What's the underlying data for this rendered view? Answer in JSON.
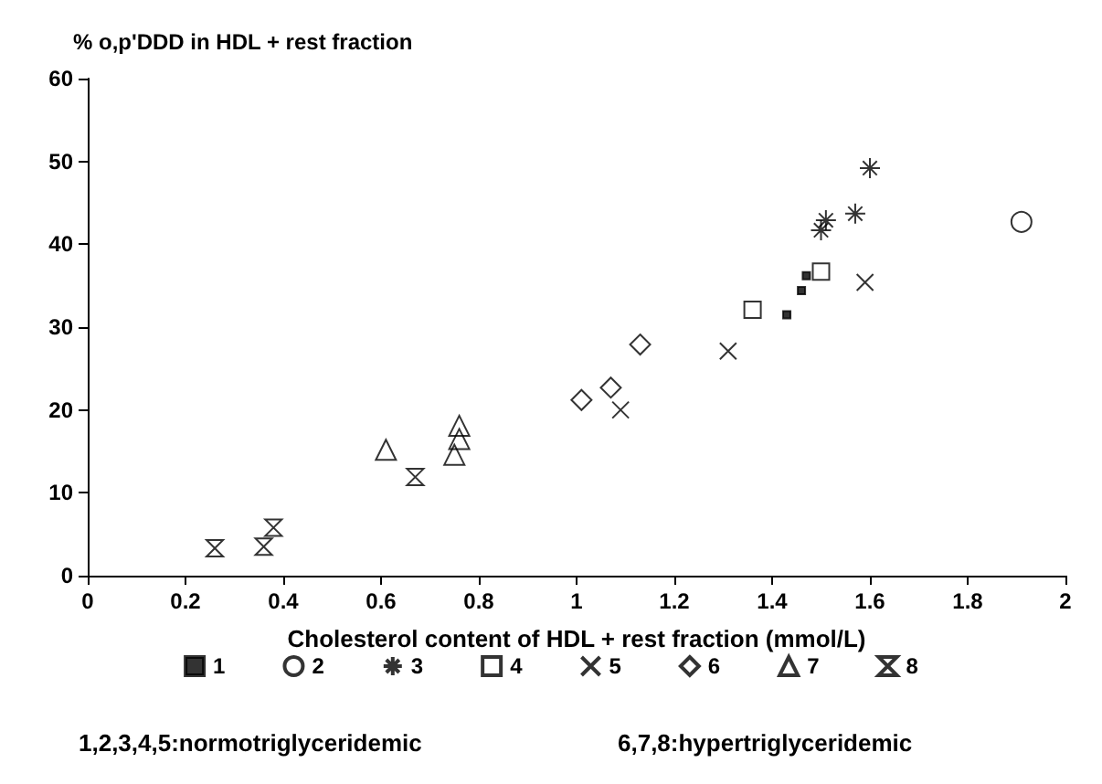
{
  "chart_data": {
    "type": "scatter",
    "ylabel": "% o,p'DDD in HDL + rest fraction",
    "xlabel": "Cholesterol content of HDL + rest fraction (mmol/L)",
    "xlim": [
      0,
      2
    ],
    "xticks": [
      0,
      0.2,
      0.4,
      0.6,
      0.8,
      1,
      1.2,
      1.4,
      1.6,
      1.8,
      2
    ],
    "ylim": [
      0,
      60
    ],
    "yticks": [
      0,
      10,
      20,
      30,
      40,
      50,
      60
    ],
    "grid": false,
    "legend": "bottom",
    "series": [
      {
        "name": "1",
        "color": "#000000",
        "x": [
          1.43,
          1.46,
          1.47
        ],
        "values": [
          31.5,
          34.4,
          36.2
        ]
      },
      {
        "name": "2",
        "color": "#000000",
        "marker": "circle",
        "x": [
          1.91
        ],
        "values": [
          42.7
        ]
      },
      {
        "name": "3",
        "color": "#000000",
        "x": [
          1.6,
          1.57,
          1.51,
          1.5
        ],
        "values": [
          49.2,
          43.7,
          42.9,
          41.7
        ]
      },
      {
        "name": "4",
        "color": "#000000",
        "marker": "square",
        "x": [
          1.36,
          1.5
        ],
        "values": [
          32.1,
          36.7
        ]
      },
      {
        "name": "5",
        "color": "#000000",
        "marker": "cross",
        "x": [
          1.59,
          1.31,
          1.09
        ],
        "values": [
          35.4,
          27.1,
          20
        ]
      },
      {
        "name": "6",
        "color": "#000000",
        "marker": "diamond",
        "x": [
          1.01,
          1.07,
          1.13
        ],
        "values": [
          21.2,
          22.7,
          27.9
        ]
      },
      {
        "name": "7",
        "color": "#000000",
        "marker": "triangle",
        "x": [
          0.61,
          0.76,
          0.76,
          0.75
        ],
        "values": [
          15.2,
          18.1,
          16.5,
          14.6
        ]
      },
      {
        "name": "8",
        "color": "#000000",
        "x": [
          0.26,
          0.36,
          0.38,
          0.67
        ],
        "values": [
          3.3,
          3.5,
          5.8,
          11.9
        ]
      }
    ],
    "annotations": [
      "1,2,3,4,5:normotriglyceridemic",
      "6,7,8:hypertriglyceridemic"
    ]
  }
}
